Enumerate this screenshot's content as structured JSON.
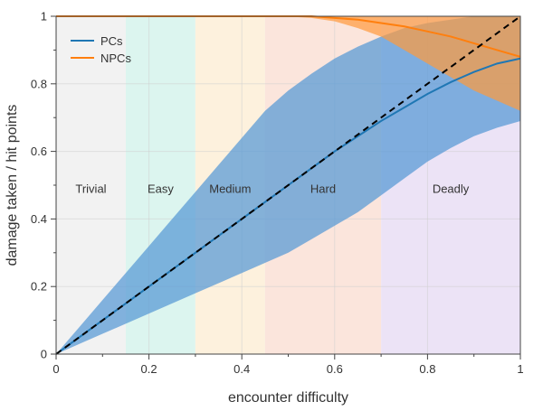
{
  "chart_data": {
    "type": "area",
    "title": "",
    "xlabel": "encounter difficulty",
    "ylabel": "damage taken / hit points",
    "xlim": [
      0,
      1
    ],
    "ylim": [
      0,
      1
    ],
    "grid": true,
    "legend_position": "top-left",
    "x_ticks": [
      {
        "value": 0,
        "label": "0"
      },
      {
        "value": 0.2,
        "label": "0.2"
      },
      {
        "value": 0.4,
        "label": "0.4"
      },
      {
        "value": 0.6,
        "label": "0.6"
      },
      {
        "value": 0.8,
        "label": "0.8"
      },
      {
        "value": 1,
        "label": "1"
      }
    ],
    "y_ticks": [
      {
        "value": 0,
        "label": "0"
      },
      {
        "value": 0.2,
        "label": "0.2"
      },
      {
        "value": 0.4,
        "label": "0.4"
      },
      {
        "value": 0.6,
        "label": "0.6"
      },
      {
        "value": 0.8,
        "label": "0.8"
      },
      {
        "value": 1,
        "label": "1"
      }
    ],
    "minor_ticks": [
      0.1,
      0.3,
      0.5,
      0.7,
      0.9
    ],
    "bands": [
      {
        "label": "Trivial",
        "x0": 0,
        "x1": 0.15,
        "color": "#f2f2f2"
      },
      {
        "label": "Easy",
        "x0": 0.15,
        "x1": 0.3,
        "color": "#dcf5ef"
      },
      {
        "label": "Medium",
        "x0": 0.3,
        "x1": 0.45,
        "color": "#fdf1dd"
      },
      {
        "label": "Hard",
        "x0": 0.45,
        "x1": 0.7,
        "color": "#fbe5dc"
      },
      {
        "label": "Deadly",
        "x0": 0.7,
        "x1": 1,
        "color": "#ece3f6"
      }
    ],
    "band_label_y": 0.49,
    "reference_line": {
      "x": [
        0,
        1
      ],
      "y": [
        0,
        1
      ],
      "color": "#000000",
      "style": "dashed"
    },
    "x": [
      0,
      0.05,
      0.1,
      0.15,
      0.2,
      0.25,
      0.3,
      0.35,
      0.4,
      0.45,
      0.5,
      0.55,
      0.6,
      0.65,
      0.7,
      0.75,
      0.8,
      0.85,
      0.9,
      0.95,
      1
    ],
    "series": [
      {
        "name": "PCs",
        "color": "#1f77b4",
        "band_color": "#5b9bd5",
        "band_opacity": 0.75,
        "values": [
          0,
          0.05,
          0.1,
          0.15,
          0.2,
          0.25,
          0.3,
          0.35,
          0.4,
          0.45,
          0.5,
          0.55,
          0.6,
          0.645,
          0.69,
          0.73,
          0.77,
          0.805,
          0.835,
          0.86,
          0.875
        ],
        "upper": [
          0,
          0.08,
          0.16,
          0.24,
          0.32,
          0.4,
          0.48,
          0.56,
          0.64,
          0.72,
          0.78,
          0.83,
          0.875,
          0.91,
          0.94,
          0.965,
          0.98,
          0.99,
          1.0,
          1.0,
          1.0
        ],
        "lower": [
          0,
          0.03,
          0.06,
          0.09,
          0.12,
          0.15,
          0.18,
          0.21,
          0.24,
          0.27,
          0.3,
          0.34,
          0.38,
          0.42,
          0.47,
          0.52,
          0.57,
          0.61,
          0.645,
          0.67,
          0.69
        ]
      },
      {
        "name": "NPCs",
        "color": "#ff7f0e",
        "band_color": "#ff9a3c",
        "band_opacity": 0.7,
        "values": [
          1,
          1,
          1,
          1,
          1,
          1,
          1,
          1,
          1,
          1,
          1,
          1,
          0.995,
          0.99,
          0.98,
          0.97,
          0.955,
          0.94,
          0.92,
          0.9,
          0.88
        ],
        "upper": [
          1,
          1,
          1,
          1,
          1,
          1,
          1,
          1,
          1,
          1,
          1,
          1,
          1,
          1,
          1,
          1,
          1,
          1,
          1,
          1,
          1
        ],
        "lower": [
          1,
          1,
          1,
          1,
          1,
          1,
          1,
          1,
          1,
          1,
          0.999,
          0.995,
          0.985,
          0.965,
          0.94,
          0.9,
          0.86,
          0.82,
          0.78,
          0.75,
          0.72
        ]
      }
    ]
  }
}
